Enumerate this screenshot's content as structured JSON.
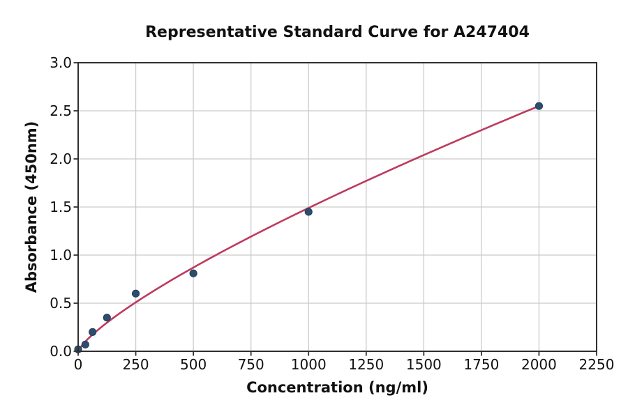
{
  "chart_data": {
    "type": "scatter",
    "title": "Representative Standard Curve for A247404",
    "xlabel": "Concentration (ng/ml)",
    "ylabel": "Absorbance (450nm)",
    "xlim": [
      0,
      2250
    ],
    "ylim": [
      0.0,
      3.0
    ],
    "xticks": [
      0,
      250,
      500,
      750,
      1000,
      1250,
      1500,
      1750,
      2000,
      2250
    ],
    "xtick_labels": [
      "0",
      "250",
      "500",
      "750",
      "1000",
      "1250",
      "1500",
      "1750",
      "2000",
      "2250"
    ],
    "yticks": [
      0.0,
      0.5,
      1.0,
      1.5,
      2.0,
      2.5,
      3.0
    ],
    "ytick_labels": [
      "0.0",
      "0.5",
      "1.0",
      "1.5",
      "2.0",
      "2.5",
      "3.0"
    ],
    "grid": true,
    "legend": "none",
    "series": [
      {
        "name": "standard-points",
        "type": "scatter",
        "x": [
          0,
          31.25,
          62.5,
          125,
          250,
          500,
          1000,
          2000
        ],
        "y": [
          0.02,
          0.07,
          0.2,
          0.35,
          0.6,
          0.81,
          1.45,
          2.55
        ]
      },
      {
        "name": "fit-curve",
        "type": "line",
        "fit": "power",
        "a": 0.00705,
        "b": 0.775,
        "x_start": 0,
        "x_end": 2000
      }
    ],
    "colors": {
      "curve": "#bd3a5e",
      "marker": "#2e4d6e",
      "marker_edge": "#24425f",
      "grid": "#cbcbcb",
      "spine": "#2f2f2f",
      "tick": "#2f2f2f",
      "text": "#111111",
      "background": "#ffffff"
    }
  }
}
